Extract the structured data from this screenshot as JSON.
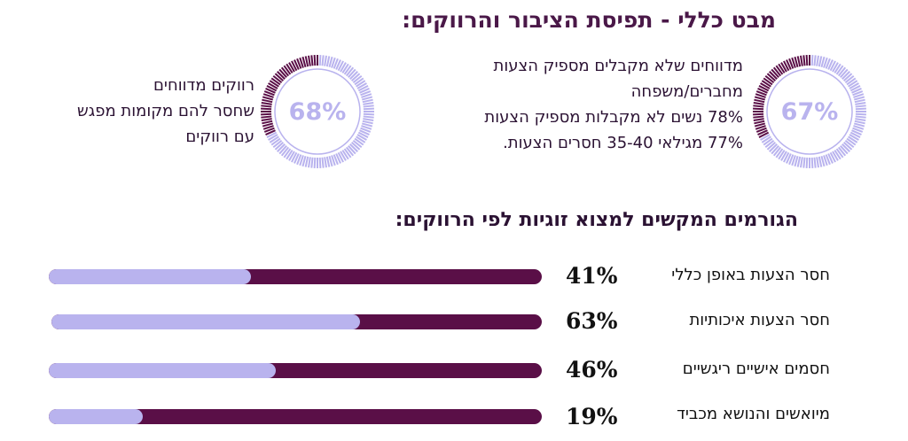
{
  "title": "מבט כללי - תפיסת הציבור והרווקים:",
  "rings": [
    {
      "value": 67,
      "label": "67%",
      "lines": [
        "מדווחים שלא מקבלים מספיק הצעות",
        "מחברים/משפחה",
        "78% נשים לא מקבלות מספיק הצעות",
        "77% מגילאי 35-40 חסרים הצעות."
      ]
    },
    {
      "value": 68,
      "label": "68%",
      "lines": [
        "רווקים מדווחים",
        "שחסר להם מקומות מפגש",
        "עם רווקים"
      ]
    }
  ],
  "subtitle": "הגורמים המקשים למצוא זוגיות לפי הרווקים:",
  "colors": {
    "dark": "#5a0f47",
    "light": "#b9b3ee"
  },
  "chart_data": {
    "type": "bar",
    "orientation": "horizontal",
    "categories": [
      "חסר הצעות באופן כללי",
      "חסר הצעות איכותיות",
      "חסמים אישיים ריגשיים",
      "מיואשים והנושא מכביד"
    ],
    "values": [
      41,
      63,
      46,
      19
    ],
    "value_labels": [
      "41%",
      "63%",
      "46%",
      "19%"
    ],
    "xlim": [
      0,
      100
    ]
  }
}
